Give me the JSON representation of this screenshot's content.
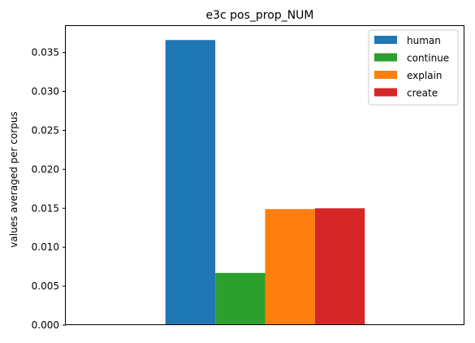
{
  "chart_data": {
    "type": "bar",
    "title": "e3c pos_prop_NUM",
    "xlabel": "",
    "ylabel": "values averaged per corpus",
    "categories": [
      ""
    ],
    "series": [
      {
        "name": "human",
        "values": [
          0.0366
        ],
        "color": "#1f77b4"
      },
      {
        "name": "continue",
        "values": [
          0.0067
        ],
        "color": "#2ca02c"
      },
      {
        "name": "explain",
        "values": [
          0.0149
        ],
        "color": "#ff7f0e"
      },
      {
        "name": "create",
        "values": [
          0.015
        ],
        "color": "#d62728"
      }
    ],
    "ylim": [
      0,
      0.0384
    ],
    "yticks": [
      {
        "value": 0.0,
        "label": "0.000"
      },
      {
        "value": 0.005,
        "label": "0.005"
      },
      {
        "value": 0.01,
        "label": "0.010"
      },
      {
        "value": 0.015,
        "label": "0.015"
      },
      {
        "value": 0.02,
        "label": "0.020"
      },
      {
        "value": 0.025,
        "label": "0.025"
      },
      {
        "value": 0.03,
        "label": "0.030"
      },
      {
        "value": 0.035,
        "label": "0.035"
      }
    ],
    "grid": false,
    "legend_position": "top-right"
  }
}
